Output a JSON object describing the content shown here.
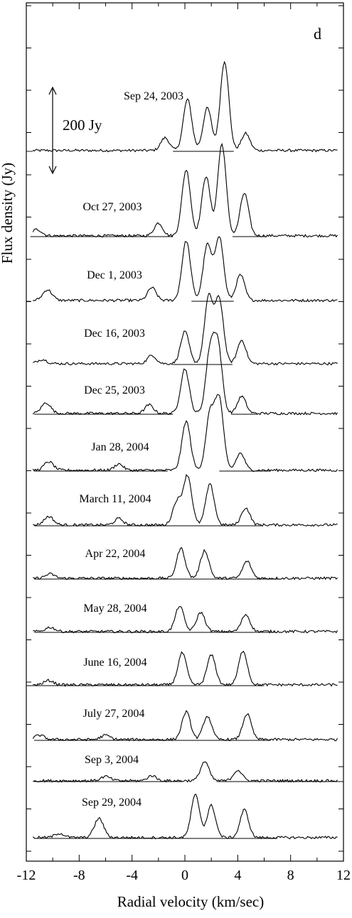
{
  "chart_data": {
    "type": "line",
    "panel_label": "d",
    "xlabel": "Radial velocity (km/sec)",
    "ylabel": "Flux density (Jy)",
    "xlim": [
      -12,
      12
    ],
    "xticks": [
      "-12",
      "-8",
      "-4",
      "0",
      "4",
      "8",
      "12"
    ],
    "scale_bar": {
      "label": "200 Jy",
      "value": 200
    },
    "series": [
      {
        "name": "Sep 24, 2003",
        "peaks": [
          [
            -1.5,
            30
          ],
          [
            0.2,
            120
          ],
          [
            1.7,
            100
          ],
          [
            3.0,
            210
          ],
          [
            4.6,
            40
          ]
        ]
      },
      {
        "name": "Oct 27, 2003",
        "peaks": [
          [
            -11.2,
            15
          ],
          [
            -2.0,
            30
          ],
          [
            0.1,
            155
          ],
          [
            1.6,
            140
          ],
          [
            2.8,
            215
          ],
          [
            4.5,
            100
          ]
        ]
      },
      {
        "name": "Dec 1, 2003",
        "peaks": [
          [
            -10.4,
            25
          ],
          [
            -2.5,
            30
          ],
          [
            0.1,
            140
          ],
          [
            1.7,
            130
          ],
          [
            2.6,
            150
          ],
          [
            4.2,
            60
          ]
        ]
      },
      {
        "name": "Dec 16, 2003",
        "peaks": [
          [
            -10.8,
            10
          ],
          [
            -2.5,
            20
          ],
          [
            0.0,
            75
          ],
          [
            1.8,
            155
          ],
          [
            2.6,
            150
          ],
          [
            4.3,
            55
          ]
        ]
      },
      {
        "name": "Dec 25, 2003",
        "peaks": [
          [
            -10.5,
            25
          ],
          [
            -2.7,
            20
          ],
          [
            0.0,
            105
          ],
          [
            1.9,
            140
          ],
          [
            2.5,
            155
          ],
          [
            4.3,
            40
          ]
        ]
      },
      {
        "name": "Jan 28, 2004",
        "peaks": [
          [
            -10.3,
            20
          ],
          [
            -5.0,
            15
          ],
          [
            0.1,
            115
          ],
          [
            1.9,
            130
          ],
          [
            2.6,
            165
          ],
          [
            4.2,
            40
          ]
        ]
      },
      {
        "name": "March 11, 2004",
        "peaks": [
          [
            -10.3,
            20
          ],
          [
            -5.0,
            15
          ],
          [
            -0.6,
            55
          ],
          [
            0.2,
            115
          ],
          [
            1.9,
            95
          ],
          [
            4.6,
            40
          ]
        ]
      },
      {
        "name": "Apr 22, 2004",
        "peaks": [
          [
            -10.2,
            10
          ],
          [
            -0.3,
            70
          ],
          [
            1.5,
            65
          ],
          [
            4.7,
            40
          ]
        ]
      },
      {
        "name": "May 28, 2004",
        "peaks": [
          [
            -10.2,
            10
          ],
          [
            -0.4,
            60
          ],
          [
            1.2,
            45
          ],
          [
            4.6,
            40
          ]
        ]
      },
      {
        "name": "June 16, 2004",
        "peaks": [
          [
            -10.3,
            10
          ],
          [
            -0.2,
            75
          ],
          [
            2.0,
            70
          ],
          [
            4.4,
            80
          ]
        ]
      },
      {
        "name": "July 27, 2004",
        "peaks": [
          [
            -11.0,
            10
          ],
          [
            -6.0,
            10
          ],
          [
            0.1,
            65
          ],
          [
            1.7,
            55
          ],
          [
            4.7,
            60
          ]
        ]
      },
      {
        "name": "Sep 3, 2004",
        "peaks": [
          [
            -6.0,
            10
          ],
          [
            -2.5,
            12
          ],
          [
            1.5,
            45
          ],
          [
            4.0,
            25
          ]
        ]
      },
      {
        "name": "Sep 29, 2004",
        "peaks": [
          [
            -9.5,
            10
          ],
          [
            -6.5,
            45
          ],
          [
            0.8,
            100
          ],
          [
            2.0,
            75
          ],
          [
            4.5,
            65
          ]
        ]
      }
    ]
  }
}
